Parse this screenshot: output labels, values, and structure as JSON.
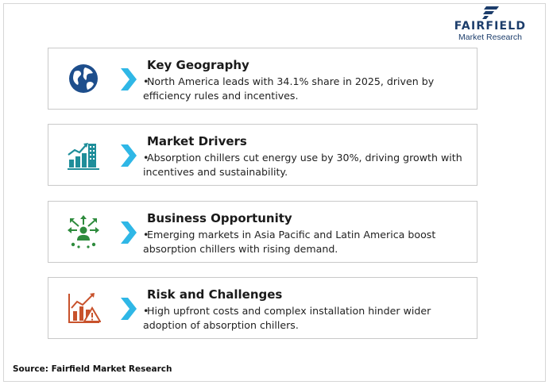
{
  "logo": {
    "name": "FAIRFIELD",
    "tagline": "Market Research",
    "brand_color": "#1c3d6b"
  },
  "accent_color": "#2fb7e6",
  "cards": [
    {
      "icon": "globe-icon",
      "title": "Key Geography",
      "text": "North America leads with 34.1% share in 2025, driven by efficiency rules and incentives."
    },
    {
      "icon": "growth-city-icon",
      "title": "Market Drivers",
      "text": "Absorption chillers cut energy use by 30%, driving growth with incentives and sustainability."
    },
    {
      "icon": "opportunity-icon",
      "title": "Business Opportunity",
      "text": "Emerging markets in Asia Pacific and Latin America boost absorption chillers with rising demand."
    },
    {
      "icon": "risk-chart-icon",
      "title": "Risk and Challenges",
      "text": "High upfront costs and complex installation hinder wider adoption of absorption chillers."
    }
  ],
  "source": "Source: Fairfield Market Research"
}
